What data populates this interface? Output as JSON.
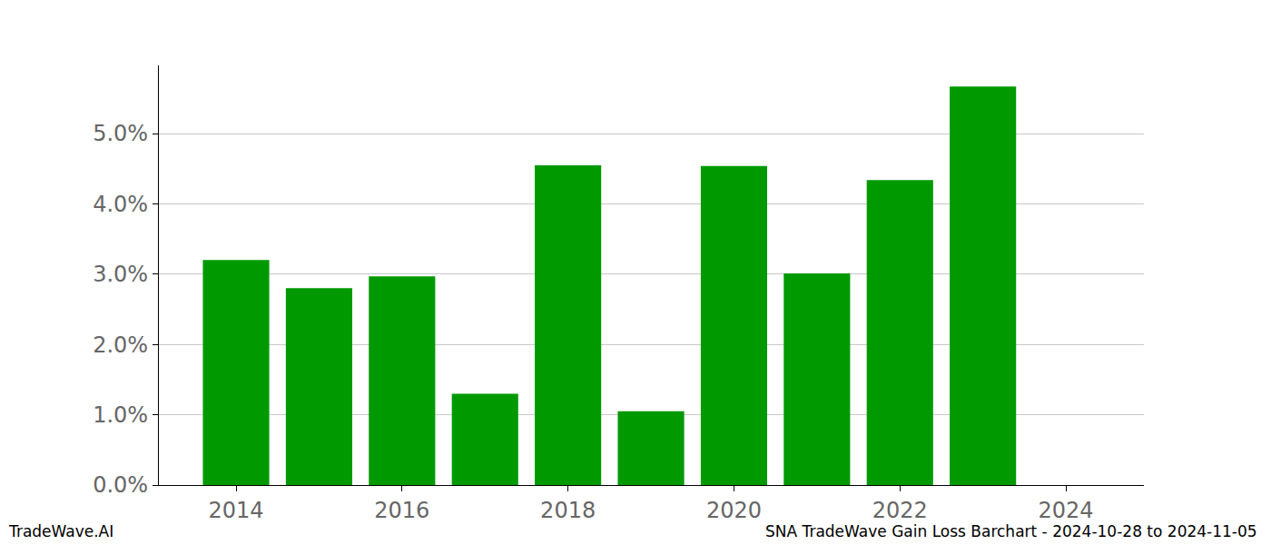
{
  "chart_data": {
    "type": "bar",
    "x": [
      2014,
      2015,
      2016,
      2017,
      2018,
      2019,
      2020,
      2021,
      2022,
      2023
    ],
    "values": [
      3.2,
      2.8,
      2.97,
      1.3,
      4.55,
      1.05,
      4.54,
      3.01,
      4.34,
      5.67
    ],
    "color": "#009900",
    "xlim": [
      2013.07,
      2024.94
    ],
    "xticks": [
      2014,
      2016,
      2018,
      2020,
      2022,
      2024
    ],
    "ylim": [
      0,
      5.97
    ],
    "yticks": [
      {
        "value": 0,
        "label": "0.0%"
      },
      {
        "value": 1,
        "label": "1.0%"
      },
      {
        "value": 2,
        "label": "2.0%"
      },
      {
        "value": 3,
        "label": "3.0%"
      },
      {
        "value": 4,
        "label": "4.0%"
      },
      {
        "value": 5,
        "label": "5.0%"
      }
    ],
    "grid": true,
    "annotations": [
      "TradeWave.AI",
      "SNA TradeWave Gain Loss Barchart - 2024-10-28 to 2024-11-05"
    ]
  }
}
